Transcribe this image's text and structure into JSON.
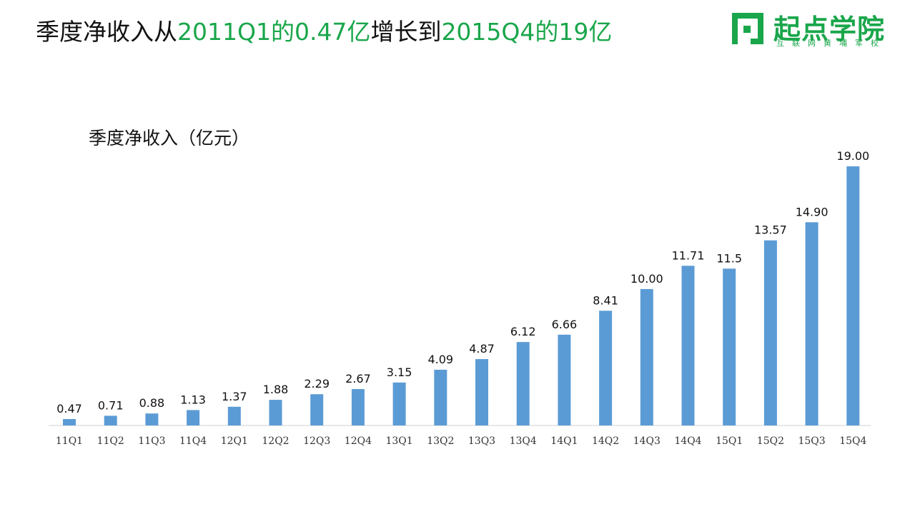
{
  "headline": {
    "p1": "季度净收入从",
    "p2": "2011Q1的0.47亿",
    "p3": "增长到",
    "p4": "2015Q4的19亿"
  },
  "logo": {
    "name": "起点学院",
    "tagline": "互联网黄埔军校"
  },
  "colors": {
    "accent": "#1aa64b",
    "bar": "#5b9bd5"
  },
  "chart_data": {
    "type": "bar",
    "title": "季度净收入（亿元）",
    "xlabel": "",
    "ylabel": "",
    "grid": false,
    "ylim": [
      0,
      19.5
    ],
    "categories": [
      "11Q1",
      "11Q2",
      "11Q3",
      "11Q4",
      "12Q1",
      "12Q2",
      "12Q3",
      "12Q4",
      "13Q1",
      "13Q2",
      "13Q3",
      "13Q4",
      "14Q1",
      "14Q2",
      "14Q3",
      "14Q4",
      "15Q1",
      "15Q2",
      "15Q3",
      "15Q4"
    ],
    "values": [
      0.47,
      0.71,
      0.88,
      1.13,
      1.37,
      1.88,
      2.29,
      2.67,
      3.15,
      4.09,
      4.87,
      6.12,
      6.66,
      8.41,
      10.0,
      11.71,
      11.5,
      13.57,
      14.9,
      19.0
    ],
    "labels": [
      "0.47",
      "0.71",
      "0.88",
      "1.13",
      "1.37",
      "1.88",
      "2.29",
      "2.67",
      "3.15",
      "4.09",
      "4.87",
      "6.12",
      "6.66",
      "8.41",
      "10.00",
      "11.71",
      "11.5",
      "13.57",
      "14.90",
      "19.00"
    ]
  }
}
